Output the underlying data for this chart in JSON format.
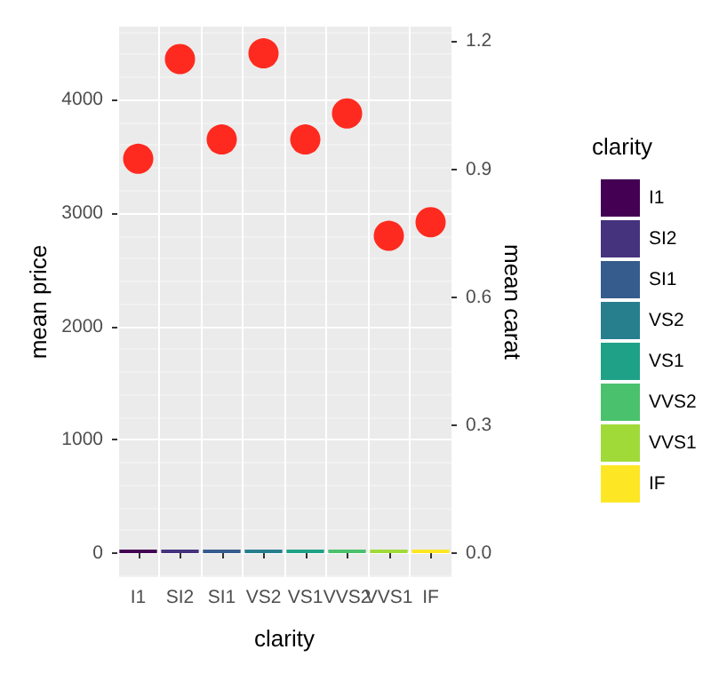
{
  "chart_data": {
    "type": "bar",
    "xlabel": "clarity",
    "ylabel": "mean price",
    "y2label": "mean carat",
    "legend_title": "clarity",
    "legend": "right",
    "grid": true,
    "categories": [
      "I1",
      "SI2",
      "SI1",
      "VS2",
      "VS1",
      "VVS2",
      "VVS1",
      "IF"
    ],
    "series": [
      {
        "name": "I1",
        "color": "#440154",
        "values": [
          0,
          null,
          null,
          null,
          null,
          null,
          null,
          null
        ]
      },
      {
        "name": "SI2",
        "color": "#46337e",
        "values": [
          null,
          0,
          null,
          null,
          null,
          null,
          null,
          null
        ]
      },
      {
        "name": "SI1",
        "color": "#365c8d",
        "values": [
          null,
          null,
          0,
          null,
          null,
          null,
          null,
          null
        ]
      },
      {
        "name": "VS2",
        "color": "#277f8e",
        "values": [
          null,
          null,
          null,
          0,
          null,
          null,
          null,
          null
        ]
      },
      {
        "name": "VS1",
        "color": "#1fa187",
        "values": [
          null,
          null,
          null,
          null,
          0,
          null,
          null,
          null
        ]
      },
      {
        "name": "VVS2",
        "color": "#4ac16d",
        "values": [
          null,
          null,
          null,
          null,
          null,
          0,
          null,
          null
        ]
      },
      {
        "name": "VVS1",
        "color": "#a0da39",
        "values": [
          null,
          null,
          null,
          null,
          null,
          null,
          0,
          null
        ]
      },
      {
        "name": "IF",
        "color": "#fde725",
        "values": [
          null,
          null,
          null,
          null,
          null,
          null,
          null,
          0
        ]
      },
      {
        "type": "scatter",
        "color": "#ff2a1f",
        "x": [
          "I1",
          "SI2",
          "SI1",
          "VS2",
          "VS1",
          "VVS2",
          "VVS1",
          "IF"
        ],
        "values": [
          3480,
          4360,
          3650,
          4410,
          3650,
          3880,
          2800,
          2920
        ]
      }
    ],
    "ylim": [
      -212,
      4646
    ],
    "yticks": [
      0,
      1000,
      2000,
      3000,
      4000
    ],
    "y2lim": [
      -0.056,
      1.234
    ],
    "y2ticks": [
      {
        "value": 0,
        "label": "0.0"
      },
      {
        "value": 0.3,
        "label": "0.3"
      },
      {
        "value": 0.6,
        "label": "0.6"
      },
      {
        "value": 0.9,
        "label": "0.9"
      },
      {
        "value": 1.2,
        "label": "1.2"
      }
    ]
  }
}
